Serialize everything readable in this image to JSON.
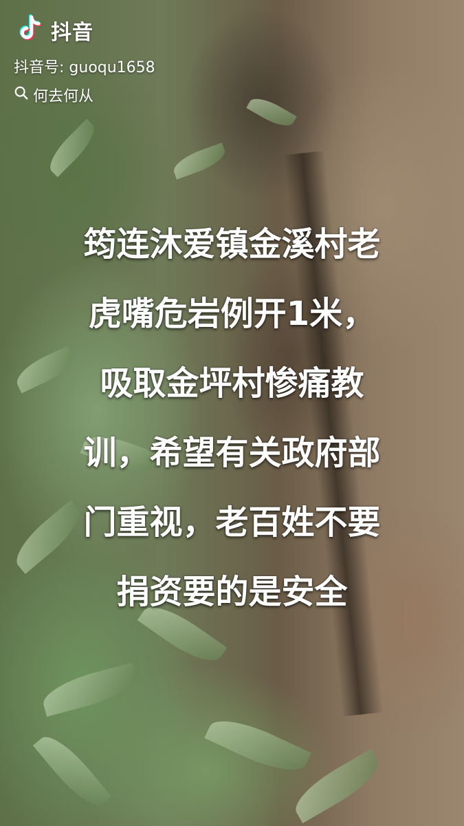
{
  "watermark": {
    "app_name": "抖音",
    "account_id": "抖音号: guoqu1658",
    "search_keyword": "何去何从",
    "logo_icon": "douyin-note-icon",
    "search_icon": "search-icon"
  },
  "caption": {
    "lines": [
      "筠连沐爱镇金溪村老",
      "虎嘴危岩例开1米，",
      "吸取金坪村惨痛教",
      "训，希望有关政府部",
      "门重视，老百姓不要",
      "捐资要的是安全"
    ]
  },
  "colors": {
    "caption_text": "#ffffff",
    "watermark_text": "#ffffff",
    "logo_cyan": "#25f4ee",
    "logo_red": "#fe2c55"
  }
}
